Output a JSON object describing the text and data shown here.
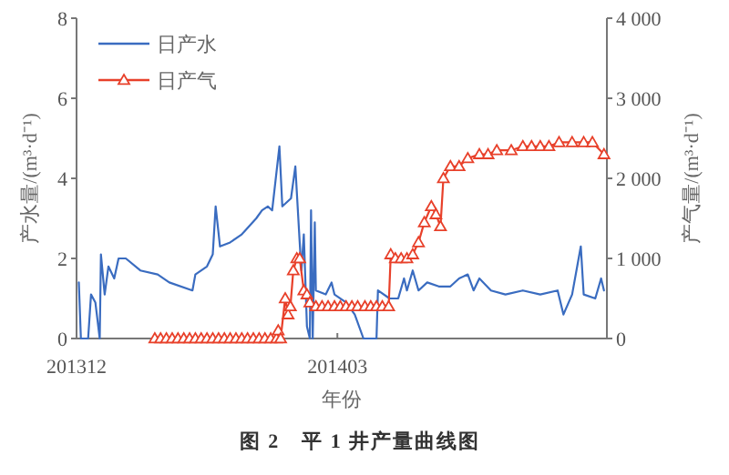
{
  "chart_data": {
    "type": "line",
    "xlabel": "年份",
    "ylabel": "产水量/(m³·d⁻¹)",
    "y2label": "产气量/(m³·d⁻¹)",
    "annotations": [
      "图 2　平 1 井产量曲线图"
    ],
    "xlim": [
      "2013-12-01",
      "2014-06-02"
    ],
    "xticks": [
      {
        "value": "2013-12",
        "label": "201312"
      },
      {
        "value": "2014-03",
        "label": "201403"
      }
    ],
    "ylim": [
      0,
      8
    ],
    "yticks": [
      0,
      2,
      4,
      6,
      8
    ],
    "y2lim": [
      0,
      4000
    ],
    "y2ticks": [
      0,
      {
        "value": 1000,
        "label": "1 000"
      },
      {
        "value": 2000,
        "label": "2 000"
      },
      {
        "value": 3000,
        "label": "3 000"
      },
      {
        "value": 4000,
        "label": "4 000"
      }
    ],
    "grid": false,
    "legend": "top left",
    "series": [
      {
        "name": "日产水",
        "color": "#3a6cc0",
        "marker": "none",
        "x": [
          "2013-12-01T19:00",
          "2013-12-02T12:00",
          "2013-12-05",
          "2013-12-06",
          "2013-12-07T12:00",
          "2013-12-09",
          "2013-12-09T10:00",
          "2013-12-10T17:00",
          "2013-12-12",
          "2013-12-14",
          "2013-12-15T12:00",
          "2013-12-18",
          "2013-12-23",
          "2013-12-29",
          "2014-01-02",
          "2014-01-10",
          "2014-01-11",
          "2014-01-15",
          "2014-01-17",
          "2014-01-18",
          "2014-01-19T12:00",
          "2014-01-23",
          "2014-01-27",
          "2014-02-01",
          "2014-02-03",
          "2014-02-05",
          "2014-02-06T12:00",
          "2014-02-09",
          "2014-02-10",
          "2014-02-13",
          "2014-02-14T12:00",
          "2014-02-16",
          "2014-02-16T14:00",
          "2014-02-17T10:00",
          "2014-02-18T12:00",
          "2014-02-19T12:00",
          "2014-02-19T22:00",
          "2014-02-20T12:00",
          "2014-02-21T05:00",
          "2014-02-21T14:00",
          "2014-02-25",
          "2014-02-27",
          "2014-02-28",
          "2014-03-04",
          "2014-03-07",
          "2014-03-10",
          "2014-03-14T12:00",
          "2014-03-15",
          "2014-03-19",
          "2014-03-22",
          "2014-03-24",
          "2014-03-25",
          "2014-03-27",
          "2014-03-29",
          "2014-04-01",
          "2014-04-05",
          "2014-04-09",
          "2014-04-12",
          "2014-04-15",
          "2014-04-17",
          "2014-04-19",
          "2014-04-23",
          "2014-04-28",
          "2014-05-04",
          "2014-05-10",
          "2014-05-16",
          "2014-05-18",
          "2014-05-21",
          "2014-05-24",
          "2014-05-25",
          "2014-05-29",
          "2014-05-31",
          "2014-06-01"
        ],
        "values": [
          1.4,
          0,
          0,
          1.1,
          0.9,
          0,
          2.1,
          1.1,
          1.8,
          1.5,
          2.0,
          2.0,
          1.7,
          1.6,
          1.4,
          1.2,
          1.6,
          1.8,
          2.1,
          3.3,
          2.3,
          2.4,
          2.6,
          3.0,
          3.2,
          3.3,
          3.2,
          4.8,
          3.3,
          3.5,
          4.3,
          2.4,
          1.7,
          2.6,
          0.3,
          0,
          3.2,
          0,
          2.9,
          1.2,
          1.1,
          1.4,
          1.1,
          0.9,
          0.6,
          0,
          0,
          1.2,
          1.0,
          1.0,
          1.5,
          1.2,
          1.7,
          1.2,
          1.4,
          1.3,
          1.3,
          1.5,
          1.6,
          1.2,
          1.5,
          1.2,
          1.1,
          1.2,
          1.1,
          1.2,
          0.6,
          1.1,
          2.3,
          1.1,
          1.0,
          1.5,
          1.2
        ]
      },
      {
        "name": "日产气",
        "color": "#e8402a",
        "marker": "triangle",
        "axis": "y2",
        "x": [
          "2013-12-28",
          "2013-12-30",
          "2014-01-01",
          "2014-01-03",
          "2014-01-05",
          "2014-01-07",
          "2014-01-09",
          "2014-01-11",
          "2014-01-13",
          "2014-01-15",
          "2014-01-17",
          "2014-01-19",
          "2014-01-21",
          "2014-01-23",
          "2014-01-25",
          "2014-01-27",
          "2014-01-29",
          "2014-01-31",
          "2014-02-02",
          "2014-02-04",
          "2014-02-06",
          "2014-02-08",
          "2014-02-08T14:00",
          "2014-02-09T10:00",
          "2014-02-11",
          "2014-02-12",
          "2014-02-12T19:00",
          "2014-02-13T19:00",
          "2014-02-15",
          "2014-02-16",
          "2014-02-17T10:00",
          "2014-02-18T12:00",
          "2014-02-19T12:00",
          "2014-02-21T14:00",
          "2014-02-23T17:00",
          "2014-02-25T19:00",
          "2014-02-28",
          "2014-03-02",
          "2014-03-04",
          "2014-03-06",
          "2014-03-08",
          "2014-03-10T12:00",
          "2014-03-12T12:00",
          "2014-03-14T12:00",
          "2014-03-16T12:00",
          "2014-03-18T17:00",
          "2014-03-19T10:00",
          "2014-03-21",
          "2014-03-23",
          "2014-03-25",
          "2014-03-27",
          "2014-03-29",
          "2014-03-31",
          "2014-04-02T10:00",
          "2014-04-04",
          "2014-04-05T14:00",
          "2014-04-06T14:00",
          "2014-04-09",
          "2014-04-12",
          "2014-04-15",
          "2014-04-19",
          "2014-04-22",
          "2014-04-25",
          "2014-04-30",
          "2014-05-04",
          "2014-05-07",
          "2014-05-10",
          "2014-05-13",
          "2014-05-16T12:00",
          "2014-05-21",
          "2014-05-25",
          "2014-05-28",
          "2014-06-01"
        ],
        "values": [
          0,
          0,
          0,
          0,
          0,
          0,
          0,
          0,
          0,
          0,
          0,
          0,
          0,
          0,
          0,
          0,
          0,
          0,
          0,
          0,
          0,
          0,
          100,
          0,
          500,
          300,
          400,
          850,
          1000,
          1000,
          600,
          550,
          450,
          400,
          400,
          400,
          400,
          400,
          400,
          400,
          400,
          400,
          400,
          400,
          400,
          400,
          1050,
          1000,
          1000,
          1000,
          1050,
          1200,
          1450,
          1650,
          1550,
          1400,
          2000,
          2150,
          2150,
          2250,
          2300,
          2300,
          2350,
          2350,
          2400,
          2400,
          2400,
          2400,
          2450,
          2450,
          2450,
          2450,
          2300
        ]
      }
    ]
  }
}
